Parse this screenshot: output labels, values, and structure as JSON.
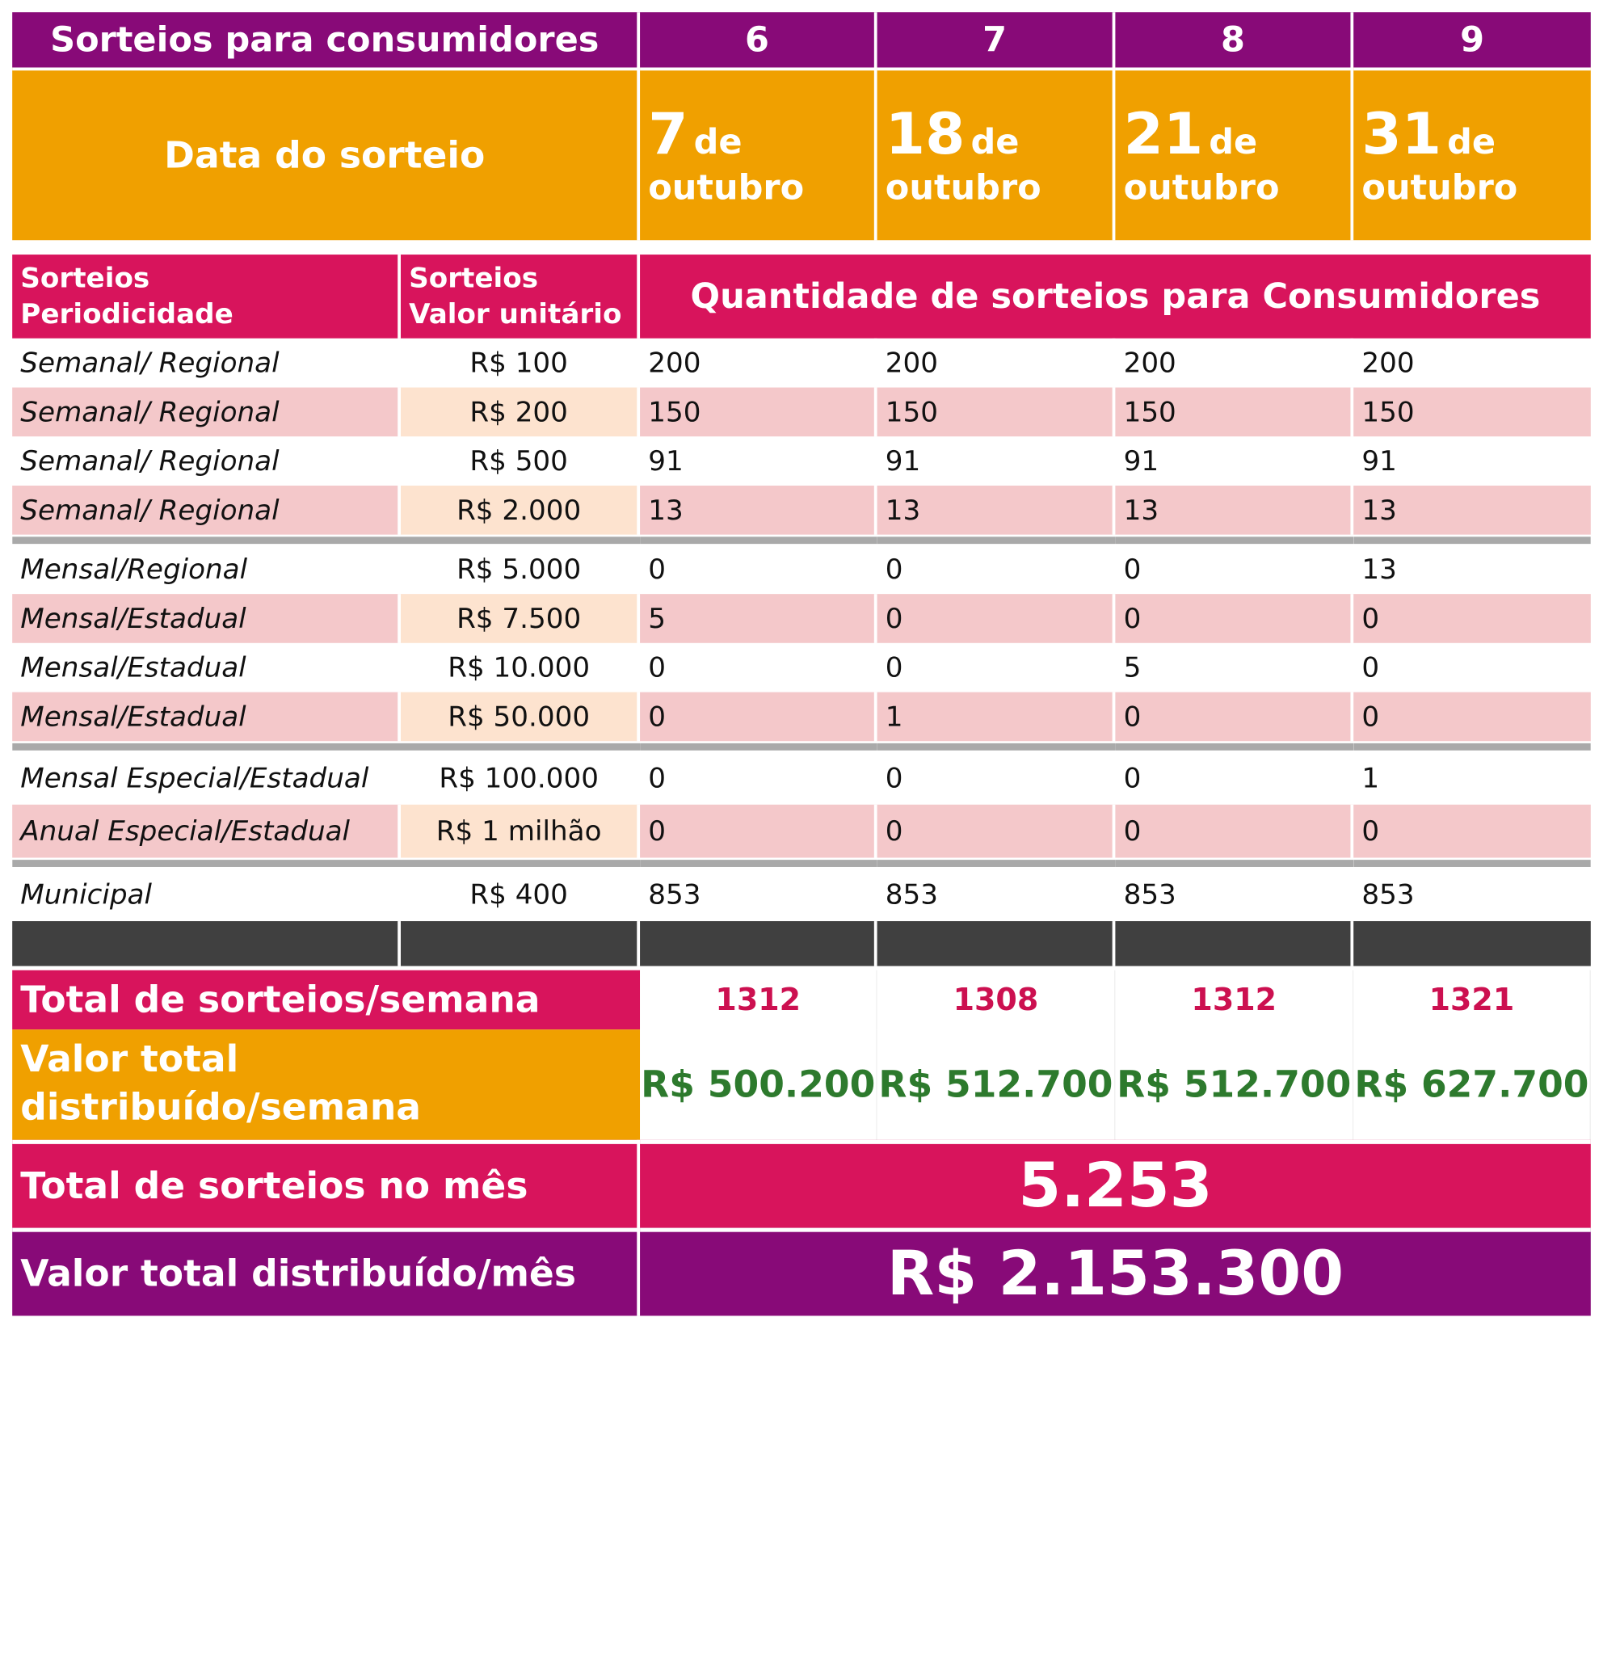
{
  "header": {
    "title": "Sorteios para consumidores",
    "columns": [
      "6",
      "7",
      "8",
      "9"
    ]
  },
  "date_row": {
    "label": "Data do sorteio",
    "dates": [
      {
        "day": "7",
        "de": "de",
        "month": "outubro"
      },
      {
        "day": "18",
        "de": "de",
        "month": "outubro"
      },
      {
        "day": "21",
        "de": "de",
        "month": "outubro"
      },
      {
        "day": "31",
        "de": "de",
        "month": "outubro"
      }
    ]
  },
  "table_head": {
    "periodicity": [
      "Sorteios",
      "Periodicidade"
    ],
    "unit_value": [
      "Sorteios",
      "Valor unitário"
    ],
    "quantity": "Quantidade de sorteios para Consumidores"
  },
  "rows": [
    {
      "periodicity": "Semanal/ Regional",
      "value": "R$ 100",
      "counts": [
        "200",
        "200",
        "200",
        "200"
      ]
    },
    {
      "periodicity": "Semanal/ Regional",
      "value": "R$ 200",
      "counts": [
        "150",
        "150",
        "150",
        "150"
      ]
    },
    {
      "periodicity": "Semanal/ Regional",
      "value": "R$ 500",
      "counts": [
        "91",
        "91",
        "91",
        "91"
      ]
    },
    {
      "periodicity": "Semanal/ Regional",
      "value": "R$ 2.000",
      "counts": [
        "13",
        "13",
        "13",
        "13"
      ]
    },
    {
      "periodicity": "Mensal/Regional",
      "value": "R$ 5.000",
      "counts": [
        "0",
        "0",
        "0",
        "13"
      ]
    },
    {
      "periodicity": "Mensal/Estadual",
      "value": "R$ 7.500",
      "counts": [
        "5",
        "0",
        "0",
        "0"
      ]
    },
    {
      "periodicity": "Mensal/Estadual",
      "value": "R$ 10.000",
      "counts": [
        "0",
        "0",
        "5",
        "0"
      ]
    },
    {
      "periodicity": "Mensal/Estadual",
      "value": "R$ 50.000",
      "counts": [
        "0",
        "1",
        "0",
        "0"
      ]
    },
    {
      "periodicity": "Mensal Especial/Estadual",
      "value": "R$ 100.000",
      "counts": [
        "0",
        "0",
        "0",
        "1"
      ]
    },
    {
      "periodicity": "Anual Especial/Estadual",
      "value": "R$ 1 milhão",
      "counts": [
        "0",
        "0",
        "0",
        "0"
      ]
    },
    {
      "periodicity": "Municipal",
      "value": "R$ 400",
      "counts": [
        "853",
        "853",
        "853",
        "853"
      ]
    }
  ],
  "totals": {
    "week_label": "Total de sorteios/semana",
    "week_values": [
      "1312",
      "1308",
      "1312",
      "1321"
    ],
    "value_week_label": [
      "Valor total",
      "distribuído/semana"
    ],
    "value_week_values": [
      "R$ 500.200",
      "R$ 512.700",
      "R$ 512.700",
      "R$ 627.700"
    ],
    "month_label": "Total de sorteios no mês",
    "month_value": "5.253",
    "value_month_label": "Valor total distribuído/mês",
    "value_month_value": "R$ 2.153.300"
  },
  "colors": {
    "purple": "#880a78",
    "orange": "#f0a000",
    "magenta": "#d8145c",
    "row_pink": "#f4c8ca",
    "cell_peach": "#fde3cf",
    "total_red": "#cc1050",
    "value_green": "#2d7a2d",
    "dark_bar": "#404040"
  }
}
